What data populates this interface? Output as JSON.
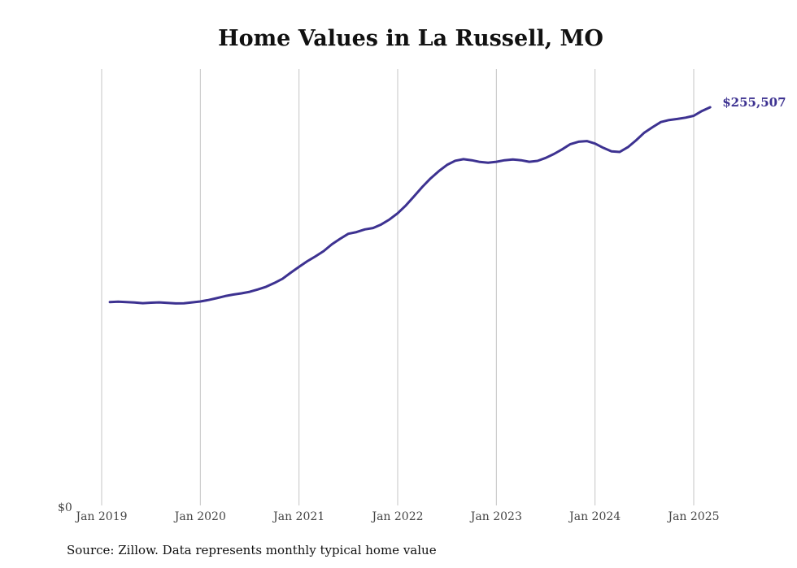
{
  "chart_data": {
    "type": "line",
    "title": "Home Values in La Russell, MO",
    "xlabel": "",
    "ylabel": "",
    "y_tick_labels": [
      "$0"
    ],
    "x_tick_labels": [
      "Jan 2019",
      "Jan 2020",
      "Jan 2021",
      "Jan 2022",
      "Jan 2023",
      "Jan 2024",
      "Jan 2025"
    ],
    "x_tick_dates": [
      "2019-01",
      "2020-01",
      "2021-01",
      "2022-01",
      "2023-01",
      "2024-01",
      "2025-01"
    ],
    "ylim": [
      0,
      280000
    ],
    "x_range": [
      "2019-01",
      "2025-03"
    ],
    "grid": "vertical",
    "end_label": "$255,507",
    "line_color": "#3d3291",
    "series": [
      {
        "x": [
          "2019-02",
          "2019-03",
          "2019-04",
          "2019-05",
          "2019-06",
          "2019-07",
          "2019-08",
          "2019-09",
          "2019-10",
          "2019-11",
          "2019-12",
          "2020-01",
          "2020-02",
          "2020-03",
          "2020-04",
          "2020-05",
          "2020-06",
          "2020-07",
          "2020-08",
          "2020-09",
          "2020-10",
          "2020-11",
          "2020-12",
          "2021-01",
          "2021-02",
          "2021-03",
          "2021-04",
          "2021-05",
          "2021-06",
          "2021-07",
          "2021-08",
          "2021-09",
          "2021-10",
          "2021-11",
          "2021-12",
          "2022-01",
          "2022-02",
          "2022-03",
          "2022-04",
          "2022-05",
          "2022-06",
          "2022-07",
          "2022-08",
          "2022-09",
          "2022-10",
          "2022-11",
          "2022-12",
          "2023-01",
          "2023-02",
          "2023-03",
          "2023-04",
          "2023-05",
          "2023-06",
          "2023-07",
          "2023-08",
          "2023-09",
          "2023-10",
          "2023-11",
          "2023-12",
          "2024-01",
          "2024-02",
          "2024-03",
          "2024-04",
          "2024-05",
          "2024-06",
          "2024-07",
          "2024-08",
          "2024-09",
          "2024-10",
          "2024-11",
          "2024-12",
          "2025-01",
          "2025-02",
          "2025-03"
        ],
        "y": [
          130500,
          130700,
          130500,
          130200,
          129800,
          130100,
          130300,
          130000,
          129600,
          129700,
          130300,
          130900,
          131800,
          133000,
          134300,
          135300,
          136100,
          137100,
          138600,
          140300,
          142700,
          145400,
          149400,
          153100,
          156700,
          159800,
          163200,
          167600,
          171100,
          174300,
          175400,
          177100,
          178000,
          180300,
          183500,
          187500,
          192500,
          198400,
          204400,
          209800,
          214500,
          218500,
          221200,
          222200,
          221500,
          220400,
          219900,
          220500,
          221500,
          222000,
          221500,
          220500,
          221100,
          223000,
          225500,
          228500,
          231800,
          233400,
          233800,
          232200,
          229500,
          227200,
          226800,
          229900,
          234300,
          239200,
          242700,
          246000,
          247300,
          248000,
          248800,
          250000,
          253100,
          255507
        ]
      }
    ]
  },
  "footer": {
    "source": "Source: Zillow. Data represents monthly typical home value"
  }
}
